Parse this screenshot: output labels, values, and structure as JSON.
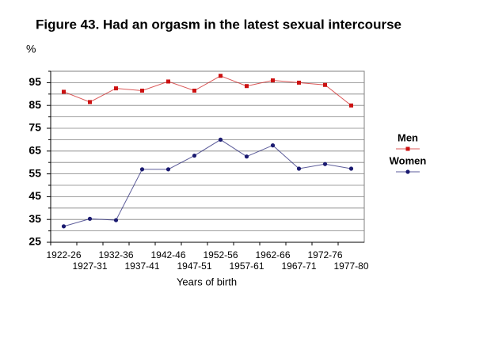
{
  "chart_data": {
    "type": "line",
    "title": "Figure 43. Had an orgasm in the latest sexual intercourse",
    "y_label": "%",
    "x_label": "Years of birth",
    "categories": [
      "1922-26",
      "1927-31",
      "1932-36",
      "1937-41",
      "1942-46",
      "1947-51",
      "1952-56",
      "1957-61",
      "1962-66",
      "1967-71",
      "1972-76",
      "1977-80"
    ],
    "series": [
      {
        "name": "Men",
        "color": "#cc1111",
        "values": [
          91,
          86.5,
          92.5,
          91.5,
          95.5,
          91.5,
          98,
          93.5,
          96,
          95,
          94,
          85
        ]
      },
      {
        "name": "Women",
        "color": "#1a1a70",
        "values": [
          32,
          35.3,
          34.7,
          57,
          57,
          63,
          70,
          62.6,
          67.5,
          57.3,
          59.3,
          57.3
        ]
      }
    ],
    "ylim": [
      25,
      100
    ],
    "yticks": [
      25,
      35,
      45,
      55,
      65,
      75,
      85,
      95
    ],
    "minor_yticks": [
      30,
      40,
      50,
      60,
      70,
      80,
      90,
      100
    ],
    "grid": true,
    "legend": "right"
  }
}
